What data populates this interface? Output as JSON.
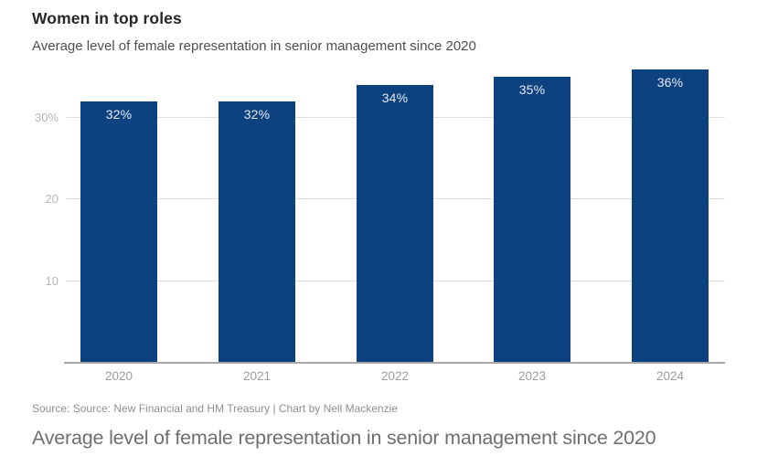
{
  "header": {
    "title": "Women in top roles",
    "subtitle": "Average level of female representation in senior management since 2020"
  },
  "chart_data": {
    "type": "bar",
    "title": "Women in top roles",
    "subtitle": "Average level of female representation in senior management since 2020",
    "categories": [
      "2020",
      "2021",
      "2022",
      "2023",
      "2024"
    ],
    "values": [
      32,
      32,
      34,
      35,
      36
    ],
    "value_labels": [
      "32%",
      "32%",
      "34%",
      "35%",
      "36%"
    ],
    "xlabel": "",
    "ylabel": "",
    "ylim": [
      0,
      36.6
    ],
    "yticks": [
      {
        "value": 10,
        "label": "10"
      },
      {
        "value": 20,
        "label": "20"
      },
      {
        "value": 30,
        "label": "30%"
      }
    ],
    "grid": true,
    "legend": "none",
    "bar_color": "#0d4280",
    "value_label_color": "#e6eaf0",
    "gridline_color": "#dedede",
    "axis_line_color": "#a8a8a8"
  },
  "footer": {
    "source": "Source: Source: New Financial and HM Treasury | Chart by Nell Mackenzie",
    "caption": "Average level of female representation in senior management since 2020"
  }
}
